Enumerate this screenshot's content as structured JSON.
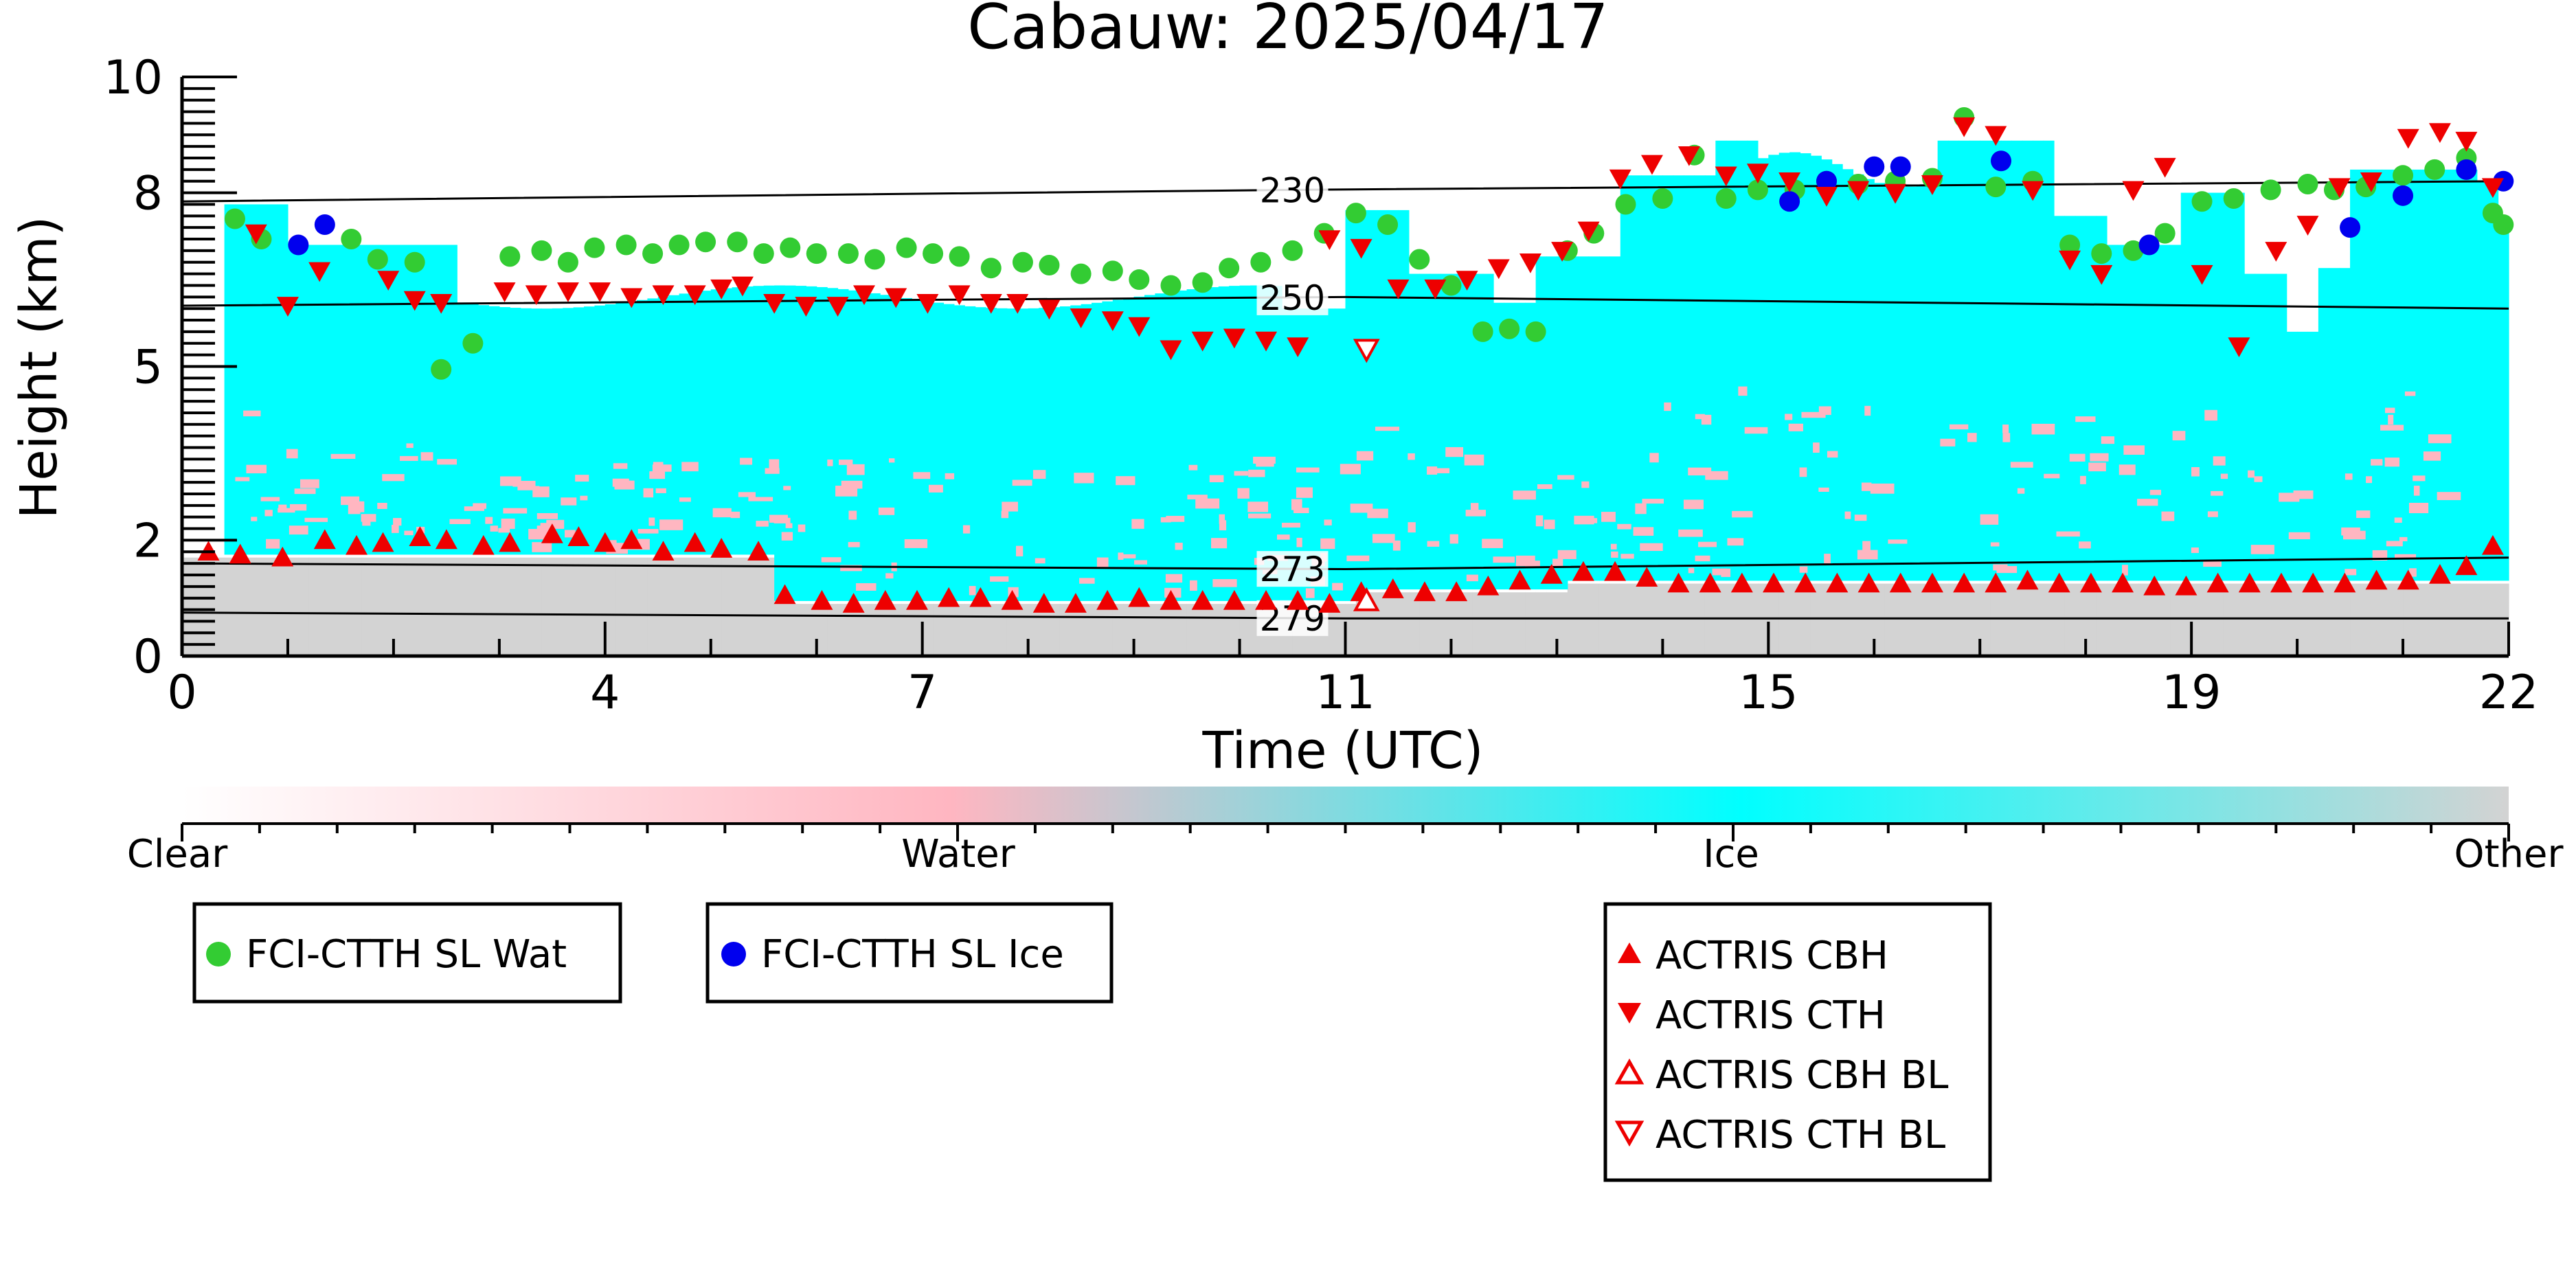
{
  "chart_data": {
    "type": "scatter",
    "title": "Cabauw: 2025/04/17",
    "xlabel": "Time (UTC)",
    "ylabel": "Height (km)",
    "xlim": [
      0,
      22
    ],
    "ylim": [
      0,
      10
    ],
    "x_ticks": [
      0,
      4,
      7,
      11,
      15,
      19,
      22
    ],
    "y_ticks": [
      0,
      2,
      5,
      8,
      10
    ],
    "grid": false,
    "colorbar": {
      "labels": [
        "Clear",
        "Water",
        "Ice",
        "Other"
      ],
      "colors": [
        "#ffffff",
        "#ffb6c1",
        "#00ffff",
        "#d3d3d3"
      ]
    },
    "isotherms": [
      {
        "label": "230",
        "x": [
          0,
          10.5,
          22
        ],
        "y": [
          7.85,
          8.05,
          8.2
        ]
      },
      {
        "label": "250",
        "x": [
          0,
          7,
          11,
          22
        ],
        "y": [
          6.05,
          6.15,
          6.2,
          6.0
        ]
      },
      {
        "label": "273",
        "x": [
          0,
          11,
          22
        ],
        "y": [
          1.6,
          1.5,
          1.7
        ]
      },
      {
        "label": "279",
        "x": [
          0,
          11,
          22
        ],
        "y": [
          0.75,
          0.65,
          0.65
        ]
      }
    ],
    "series": [
      {
        "name": "FCI-CTTH SL Wat",
        "marker": "circle",
        "color": "#33cc33",
        "x": [
          0.5,
          0.75,
          1.6,
          1.85,
          2.2,
          2.45,
          2.75,
          3.1,
          3.4,
          3.65,
          3.9,
          4.2,
          4.45,
          4.7,
          4.95,
          5.25,
          5.5,
          5.75,
          6.0,
          6.3,
          6.55,
          6.85,
          7.1,
          7.35,
          7.65,
          7.95,
          8.2,
          8.5,
          8.8,
          9.05,
          9.35,
          9.65,
          9.9,
          10.2,
          10.5,
          10.8,
          11.1,
          11.4,
          11.7,
          12.0,
          12.3,
          12.55,
          12.8,
          13.1,
          13.35,
          13.65,
          14.0,
          14.3,
          14.6,
          14.9,
          15.25,
          15.55,
          15.85,
          16.2,
          16.55,
          16.85,
          17.15,
          17.5,
          17.85,
          18.15,
          18.45,
          18.75,
          19.1,
          19.4,
          19.75,
          20.1,
          20.35,
          20.65,
          21.0,
          21.3,
          21.6,
          21.85,
          21.95
        ],
        "y": [
          7.55,
          7.2,
          7.2,
          6.85,
          6.8,
          4.95,
          5.4,
          6.9,
          7.0,
          6.8,
          7.05,
          7.1,
          6.95,
          7.1,
          7.15,
          7.15,
          6.95,
          7.05,
          6.95,
          6.95,
          6.85,
          7.05,
          6.95,
          6.9,
          6.7,
          6.8,
          6.75,
          6.6,
          6.65,
          6.5,
          6.4,
          6.45,
          6.7,
          6.8,
          7.0,
          7.3,
          7.65,
          7.45,
          6.85,
          6.4,
          5.6,
          5.65,
          5.6,
          7.0,
          7.3,
          7.8,
          7.9,
          8.65,
          7.9,
          8.05,
          8.05,
          8.2,
          8.15,
          8.2,
          8.25,
          9.3,
          8.1,
          8.2,
          7.1,
          6.95,
          7.0,
          7.3,
          7.85,
          7.9,
          8.05,
          8.15,
          8.05,
          8.1,
          8.3,
          8.4,
          8.6,
          7.65,
          7.45
        ]
      },
      {
        "name": "FCI-CTTH SL Ice",
        "marker": "circle",
        "color": "#0000ee",
        "x": [
          1.1,
          1.35,
          15.2,
          15.55,
          16.0,
          16.25,
          17.2,
          18.6,
          20.5,
          21.0,
          21.6,
          21.95
        ],
        "y": [
          7.1,
          7.45,
          7.85,
          8.2,
          8.45,
          8.45,
          8.55,
          7.1,
          7.4,
          7.95,
          8.4,
          8.2
        ]
      },
      {
        "name": "ACTRIS CBH",
        "marker": "triangle-up",
        "color": "#ee0000",
        "filled": true,
        "x": [
          0.25,
          0.55,
          0.95,
          1.35,
          1.65,
          1.9,
          2.25,
          2.5,
          2.85,
          3.1,
          3.5,
          3.75,
          4.0,
          4.25,
          4.55,
          4.85,
          5.1,
          5.45,
          5.7,
          6.05,
          6.35,
          6.65,
          6.95,
          7.25,
          7.55,
          7.85,
          8.15,
          8.45,
          8.75,
          9.05,
          9.35,
          9.65,
          9.95,
          10.25,
          10.55,
          10.85,
          11.15,
          11.45,
          11.75,
          12.05,
          12.35,
          12.65,
          12.95,
          13.25,
          13.55,
          13.85,
          14.15,
          14.45,
          14.75,
          15.05,
          15.35,
          15.65,
          15.95,
          16.25,
          16.55,
          16.85,
          17.15,
          17.45,
          17.75,
          18.05,
          18.35,
          18.65,
          18.95,
          19.25,
          19.55,
          19.85,
          20.15,
          20.45,
          20.75,
          21.05,
          21.35,
          21.6,
          21.85
        ],
        "y": [
          1.8,
          1.75,
          1.7,
          2.0,
          1.9,
          1.95,
          2.05,
          2.0,
          1.9,
          1.95,
          2.1,
          2.05,
          1.95,
          2.0,
          1.8,
          1.95,
          1.85,
          1.8,
          1.05,
          0.95,
          0.9,
          0.95,
          0.95,
          1.0,
          1.0,
          0.95,
          0.9,
          0.9,
          0.95,
          1.0,
          0.95,
          0.95,
          0.95,
          0.95,
          0.95,
          0.9,
          1.1,
          1.15,
          1.1,
          1.1,
          1.2,
          1.3,
          1.4,
          1.45,
          1.45,
          1.35,
          1.25,
          1.25,
          1.25,
          1.25,
          1.25,
          1.25,
          1.25,
          1.25,
          1.25,
          1.25,
          1.25,
          1.3,
          1.25,
          1.25,
          1.25,
          1.2,
          1.2,
          1.25,
          1.25,
          1.25,
          1.25,
          1.25,
          1.3,
          1.3,
          1.4,
          1.55,
          1.9
        ]
      },
      {
        "name": "ACTRIS CTH",
        "marker": "triangle-down",
        "color": "#ee0000",
        "filled": true,
        "x": [
          0.7,
          1.0,
          1.3,
          1.95,
          2.2,
          2.45,
          3.05,
          3.35,
          3.65,
          3.95,
          4.25,
          4.55,
          4.85,
          5.1,
          5.3,
          5.6,
          5.9,
          6.2,
          6.45,
          6.75,
          7.05,
          7.35,
          7.65,
          7.9,
          8.2,
          8.5,
          8.8,
          9.05,
          9.35,
          9.65,
          9.95,
          10.25,
          10.55,
          10.85,
          11.15,
          11.5,
          11.85,
          12.15,
          12.45,
          12.75,
          13.05,
          13.3,
          13.6,
          13.9,
          14.25,
          14.6,
          14.9,
          15.2,
          15.55,
          15.85,
          16.2,
          16.55,
          16.85,
          17.15,
          17.5,
          17.85,
          18.15,
          18.45,
          18.75,
          19.1,
          19.45,
          19.8,
          20.1,
          20.4,
          20.7,
          21.05,
          21.35,
          21.6,
          21.85
        ],
        "y": [
          7.3,
          6.05,
          6.65,
          6.5,
          6.15,
          6.1,
          6.3,
          6.25,
          6.3,
          6.3,
          6.2,
          6.25,
          6.25,
          6.35,
          6.4,
          6.1,
          6.05,
          6.05,
          6.25,
          6.2,
          6.1,
          6.25,
          6.1,
          6.1,
          6.0,
          5.85,
          5.8,
          5.7,
          5.3,
          5.45,
          5.5,
          5.45,
          5.35,
          7.2,
          7.05,
          6.35,
          6.35,
          6.5,
          6.7,
          6.8,
          7.0,
          7.35,
          8.25,
          8.5,
          8.65,
          8.3,
          8.35,
          8.2,
          7.95,
          8.05,
          8.0,
          8.15,
          9.15,
          9.0,
          8.05,
          6.85,
          6.6,
          8.05,
          8.45,
          6.6,
          5.35,
          7.0,
          7.45,
          8.1,
          8.2,
          8.95,
          9.05,
          8.9,
          8.1
        ]
      },
      {
        "name": "ACTRIS CBH BL",
        "marker": "triangle-up",
        "color": "#ee0000",
        "filled": false,
        "x": [
          11.2
        ],
        "y": [
          0.95
        ]
      },
      {
        "name": "ACTRIS CTH BL",
        "marker": "triangle-down",
        "color": "#ee0000",
        "filled": false,
        "x": [
          11.2
        ],
        "y": [
          5.3
        ]
      }
    ]
  }
}
